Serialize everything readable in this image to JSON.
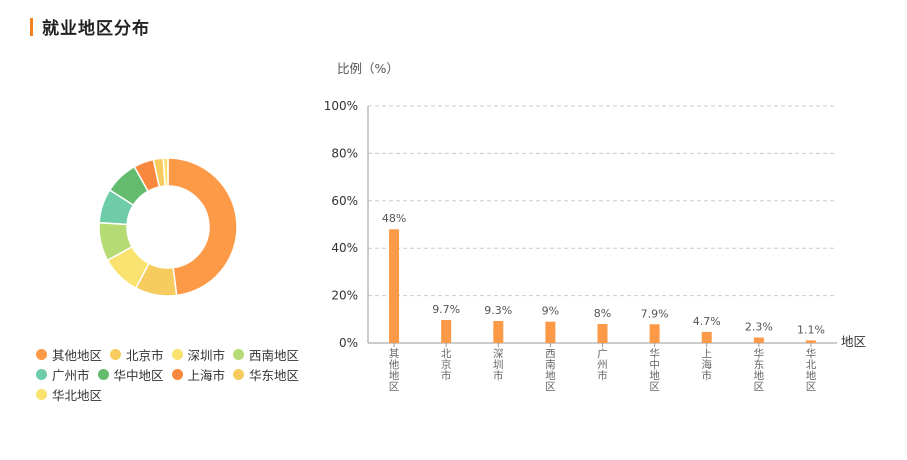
{
  "page_title": "就业地区分布",
  "chart_data": [
    {
      "type": "pie",
      "categories": [
        "其他地区",
        "北京市",
        "深圳市",
        "西南地区",
        "广州市",
        "华中地区",
        "上海市",
        "华东地区",
        "华北地区"
      ],
      "values": [
        48,
        9.7,
        9.3,
        9,
        8,
        7.9,
        4.7,
        2.3,
        1.1
      ],
      "colors": [
        "#fd9a47",
        "#f6cc5e",
        "#f9e26f",
        "#b5dc74",
        "#6ecca9",
        "#63bc6e",
        "#f7883d",
        "#f6cc5e",
        "#f9e26f"
      ],
      "donut": true,
      "legend": "bottom"
    },
    {
      "type": "bar",
      "ylabel": "比例（%）",
      "xlabel": "地区",
      "categories": [
        "其他地区",
        "北京市",
        "深圳市",
        "西南地区",
        "广州市",
        "华中地区",
        "上海市",
        "华东地区",
        "华北地区"
      ],
      "values": [
        48,
        9.7,
        9.3,
        9,
        8,
        7.9,
        4.7,
        2.3,
        1.1
      ],
      "value_labels": [
        "48%",
        "9.7%",
        "9.3%",
        "9%",
        "8%",
        "7.9%",
        "4.7%",
        "2.3%",
        "1.1%"
      ],
      "yticks": [
        "0%",
        "20%",
        "40%",
        "60%",
        "80%",
        "100%"
      ],
      "ylim": [
        0,
        100
      ],
      "grid": true,
      "bar_color": "#fd9a47"
    }
  ]
}
